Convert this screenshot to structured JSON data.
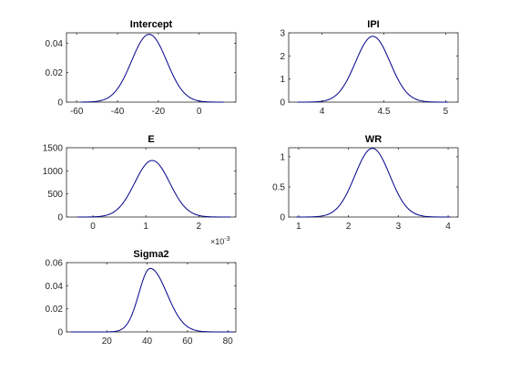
{
  "colors": {
    "line": "#00008b",
    "axis": "#262626"
  },
  "chart_data": [
    {
      "type": "line",
      "title": "Intercept",
      "xlim": [
        -65,
        18
      ],
      "ylim": [
        0,
        0.047
      ],
      "xticks": [
        -60,
        -40,
        -20,
        0
      ],
      "xtick_labels": [
        "-60",
        "-40",
        "-20",
        "0"
      ],
      "yticks": [
        0,
        0.02,
        0.04
      ],
      "ytick_labels": [
        "0",
        "0.02",
        "0.04"
      ],
      "curve": {
        "shape": "normal",
        "peak_x": -24.5,
        "peak_y": 0.046,
        "spread": 8.6,
        "range": [
          -58,
          12
        ]
      },
      "exponent_label": ""
    },
    {
      "type": "line",
      "title": "IPI",
      "xlim": [
        3.73,
        5.1
      ],
      "ylim": [
        0,
        3
      ],
      "xticks": [
        4,
        4.5,
        5
      ],
      "xtick_labels": [
        "4",
        "4.5",
        "5"
      ],
      "yticks": [
        0,
        1,
        2,
        3
      ],
      "ytick_labels": [
        "0",
        "1",
        "2",
        "3"
      ],
      "curve": {
        "shape": "normal",
        "peak_x": 4.41,
        "peak_y": 2.85,
        "spread": 0.14,
        "range": [
          3.8,
          5.02
        ]
      },
      "exponent_label": ""
    },
    {
      "type": "line",
      "title": "E",
      "xlim": [
        -0.0005,
        0.0027
      ],
      "ylim": [
        0,
        1500
      ],
      "xticks": [
        0,
        0.001,
        0.002
      ],
      "xtick_labels": [
        "0",
        "1",
        "2"
      ],
      "yticks": [
        0,
        500,
        1000,
        1500
      ],
      "ytick_labels": [
        "0",
        "500",
        "1000",
        "1500"
      ],
      "curve": {
        "shape": "normal",
        "peak_x": 0.00112,
        "peak_y": 1225,
        "spread": 0.00033,
        "range": [
          -0.0003,
          0.0026
        ]
      },
      "exponent_label": "×10",
      "exponent_power": "-3"
    },
    {
      "type": "line",
      "title": "WR",
      "xlim": [
        0.8,
        4.2
      ],
      "ylim": [
        0,
        1.15
      ],
      "xticks": [
        1,
        2,
        3,
        4
      ],
      "xtick_labels": [
        "1",
        "2",
        "3",
        "4"
      ],
      "yticks": [
        0,
        0.5,
        1
      ],
      "ytick_labels": [
        "0",
        "0.5",
        "1"
      ],
      "curve": {
        "shape": "normal",
        "peak_x": 2.48,
        "peak_y": 1.14,
        "spread": 0.35,
        "range": [
          0.95,
          4.05
        ]
      },
      "exponent_label": ""
    },
    {
      "type": "line",
      "title": "Sigma2",
      "xlim": [
        0,
        84
      ],
      "ylim": [
        0,
        0.06
      ],
      "xticks": [
        20,
        40,
        60,
        80
      ],
      "xtick_labels": [
        "20",
        "40",
        "60",
        "80"
      ],
      "yticks": [
        0,
        0.02,
        0.04,
        0.06
      ],
      "ytick_labels": [
        "0",
        "0.02",
        "0.04",
        "0.06"
      ],
      "curve": {
        "shape": "skewed",
        "peak_x": 41.5,
        "peak_y": 0.055,
        "spread_left": 5.6,
        "spread_right": 8.3,
        "range": [
          2,
          83
        ]
      },
      "exponent_label": ""
    }
  ]
}
